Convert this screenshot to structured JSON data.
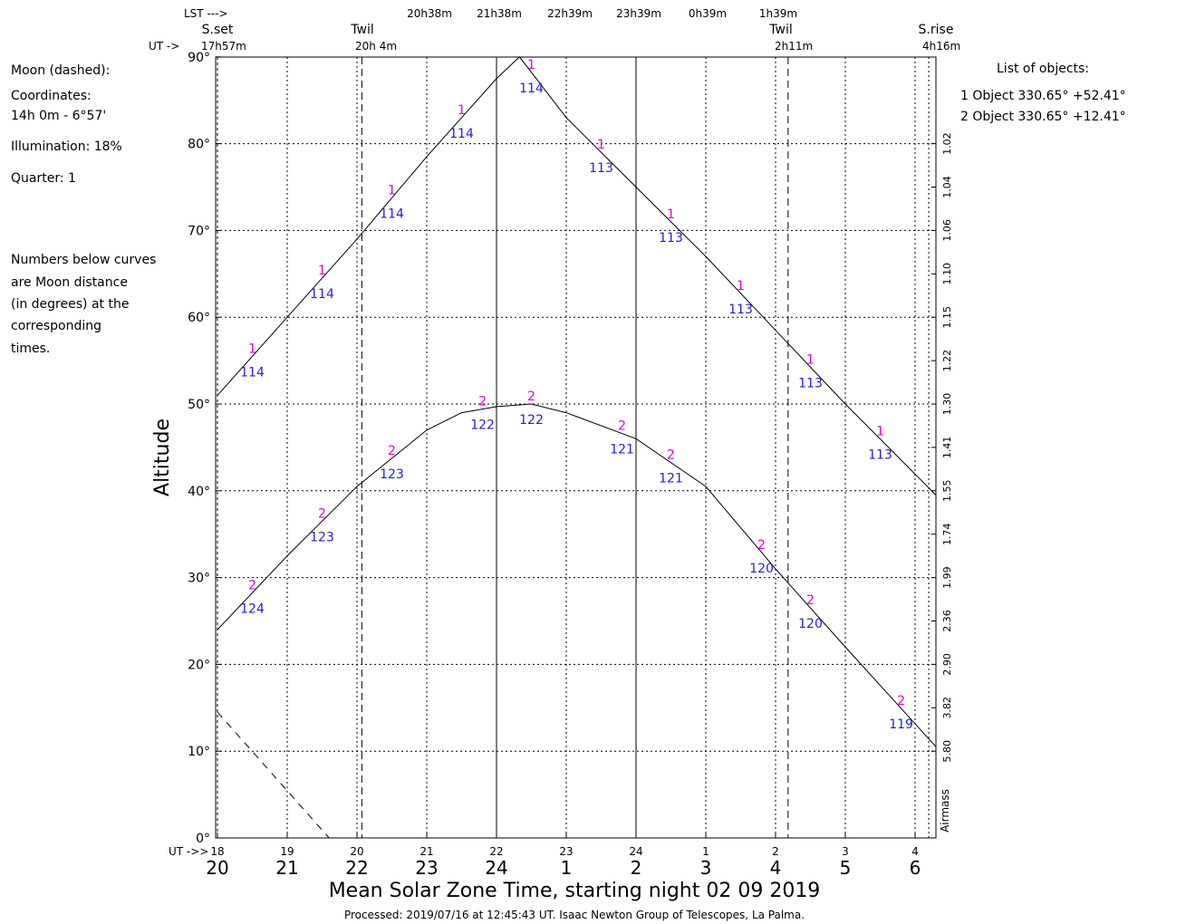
{
  "header": {
    "lst_label": "LST --->",
    "lst_times": [
      "20h38m",
      "21h38m",
      "22h39m",
      "23h39m",
      "0h39m",
      "1h39m"
    ],
    "ut_label": "UT ->",
    "events": [
      {
        "label": "S.set",
        "time": "17h57m"
      },
      {
        "label": "Twil",
        "time": "20h 4m"
      },
      {
        "label": "Twil",
        "time": "2h11m"
      },
      {
        "label": "S.rise",
        "time": "4h16m"
      }
    ]
  },
  "moon_info": {
    "title": "Moon (dashed):",
    "coords_label": "Coordinates:",
    "coords_value": "14h 0m  - 6°57'",
    "illumination": "Illumination:  18%",
    "quarter": "Quarter: 1",
    "note_lines": [
      "Numbers below curves",
      "are Moon distance",
      "(in degrees) at the",
      "corresponding",
      "times."
    ]
  },
  "objects_list": {
    "title": "List of objects:",
    "items": [
      "1 Object 330.65° +52.41°",
      "2 Object 330.65° +12.41°"
    ]
  },
  "footer": {
    "xlabel": "Mean Solar Zone Time, starting night 02 09 2019",
    "processed": "Processed: 2019/07/16 at 12:45:43 UT. Isaac  Newton Group of Telescopes, La Palma."
  },
  "chart_data": {
    "type": "line",
    "ylabel": "Altitude",
    "y2label": "Airmass",
    "ylim": [
      0,
      90
    ],
    "xlim": [
      20,
      30.3
    ],
    "y_ticks": [
      "0°",
      "10°",
      "20°",
      "30°",
      "40°",
      "50°",
      "60°",
      "70°",
      "80°",
      "90°"
    ],
    "x_ticks_local": [
      "20",
      "21",
      "22",
      "23",
      "24",
      "1",
      "2",
      "3",
      "4",
      "5",
      "6"
    ],
    "x_ticks_ut": [
      "18",
      "19",
      "20",
      "21",
      "22",
      "23",
      "24",
      "1",
      "2",
      "3",
      "4"
    ],
    "airmass_ticks": [
      {
        "alt": 10,
        "label": "5.80"
      },
      {
        "alt": 15,
        "label": "3.82"
      },
      {
        "alt": 20,
        "label": "2.90"
      },
      {
        "alt": 25,
        "label": "2.36"
      },
      {
        "alt": 30,
        "label": "1.99"
      },
      {
        "alt": 35,
        "label": "1.74"
      },
      {
        "alt": 40,
        "label": "1.55"
      },
      {
        "alt": 45,
        "label": "1.41"
      },
      {
        "alt": 50,
        "label": "1.30"
      },
      {
        "alt": 55,
        "label": "1.22"
      },
      {
        "alt": 60,
        "label": "1.15"
      },
      {
        "alt": 65,
        "label": "1.10"
      },
      {
        "alt": 70,
        "label": "1.06"
      },
      {
        "alt": 75,
        "label": "1.04"
      },
      {
        "alt": 80,
        "label": "1.02"
      }
    ],
    "events_x": {
      "sunset": 20.0,
      "twil_evening": 22.07,
      "midnight_a": 24.0,
      "midnight_b": 26.0,
      "twil_morning": 28.18,
      "sunrise": 30.3
    },
    "series": [
      {
        "name": "1",
        "x": [
          20.0,
          21.0,
          22.0,
          23.0,
          24.0,
          24.33,
          25.0,
          26.0,
          27.0,
          28.0,
          29.0,
          30.3
        ],
        "y": [
          51,
          60,
          69,
          78.5,
          87.5,
          90,
          83,
          75,
          67,
          58.5,
          50,
          39.5
        ],
        "moon_dist": [
          {
            "x": 20.5,
            "label": "114"
          },
          {
            "x": 21.5,
            "label": "114"
          },
          {
            "x": 22.5,
            "label": "114"
          },
          {
            "x": 23.5,
            "label": "114"
          },
          {
            "x": 24.5,
            "label": "114"
          },
          {
            "x": 25.5,
            "label": "113"
          },
          {
            "x": 26.5,
            "label": "113"
          },
          {
            "x": 27.5,
            "label": "113"
          },
          {
            "x": 28.5,
            "label": "113"
          },
          {
            "x": 29.5,
            "label": "113"
          }
        ]
      },
      {
        "name": "2",
        "x": [
          20.0,
          21.0,
          22.0,
          23.0,
          23.5,
          24.0,
          24.5,
          25.0,
          26.0,
          27.0,
          28.0,
          29.0,
          30.3
        ],
        "y": [
          24,
          32.5,
          40.5,
          47,
          49,
          49.7,
          50,
          49,
          46,
          40.5,
          31,
          22,
          10.5
        ],
        "moon_dist": [
          {
            "x": 20.5,
            "label": "124"
          },
          {
            "x": 21.5,
            "label": "123"
          },
          {
            "x": 22.5,
            "label": "123"
          },
          {
            "x": 23.8,
            "label": "122"
          },
          {
            "x": 24.5,
            "label": "122"
          },
          {
            "x": 25.8,
            "label": "121"
          },
          {
            "x": 26.5,
            "label": "121"
          },
          {
            "x": 27.8,
            "label": "120"
          },
          {
            "x": 28.5,
            "label": "120"
          },
          {
            "x": 29.8,
            "label": "119"
          }
        ]
      },
      {
        "name": "Moon",
        "dashed": true,
        "x": [
          20.0,
          21.6
        ],
        "y": [
          14.5,
          0
        ]
      }
    ]
  }
}
